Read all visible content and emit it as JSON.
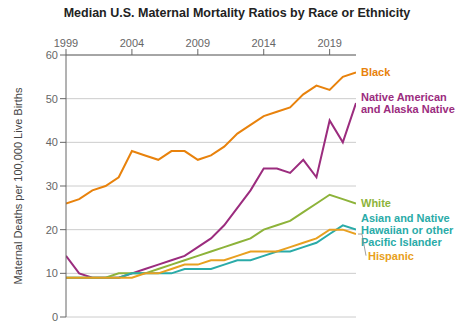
{
  "chart_data": {
    "type": "line",
    "title": "Median U.S. Maternal Mortality Ratios by Race or Ethnicity",
    "y_label": "Maternal Deaths per 100,000 Live Births",
    "x": [
      1999,
      2000,
      2001,
      2002,
      2003,
      2004,
      2005,
      2006,
      2007,
      2008,
      2009,
      2010,
      2011,
      2012,
      2013,
      2014,
      2015,
      2016,
      2017,
      2018,
      2019,
      2020,
      2021
    ],
    "series": [
      {
        "name": "Black",
        "color": "#E8820C",
        "values": [
          26,
          27,
          29,
          30,
          32,
          38,
          37,
          36,
          38,
          38,
          36,
          37,
          39,
          42,
          44,
          46,
          47,
          48,
          51,
          53,
          52,
          55,
          56
        ]
      },
      {
        "name": "Native American\nand Alaska Native",
        "color": "#9B2C7E",
        "values": [
          14,
          10,
          9,
          9,
          9,
          10,
          11,
          12,
          13,
          14,
          16,
          18,
          21,
          25,
          29,
          34,
          34,
          33,
          36,
          32,
          45,
          40,
          49
        ]
      },
      {
        "name": "White",
        "color": "#8DB33A",
        "values": [
          9,
          9,
          9,
          9,
          10,
          10,
          10,
          11,
          12,
          13,
          14,
          15,
          16,
          17,
          18,
          20,
          21,
          22,
          24,
          26,
          28,
          27,
          26
        ]
      },
      {
        "name": "Asian and Native\nHawaiian or other\nPacific Islander",
        "color": "#2AABA8",
        "values": [
          9,
          9,
          9,
          9,
          9,
          10,
          10,
          10,
          10,
          11,
          11,
          11,
          12,
          13,
          13,
          14,
          15,
          15,
          16,
          17,
          19,
          21,
          20
        ]
      },
      {
        "name": "Hispanic",
        "color": "#E8A020",
        "values": [
          9,
          9,
          9,
          9,
          9,
          9,
          10,
          10,
          11,
          12,
          12,
          13,
          13,
          14,
          15,
          15,
          15,
          16,
          17,
          18,
          20,
          20,
          19
        ]
      }
    ],
    "xlim": [
      1999,
      2021
    ],
    "xticks": [
      1999,
      2004,
      2009,
      2014,
      2019
    ],
    "ylim": [
      0,
      60
    ],
    "yticks": [
      0,
      10,
      20,
      30,
      40,
      50,
      60
    ],
    "grid": true
  }
}
